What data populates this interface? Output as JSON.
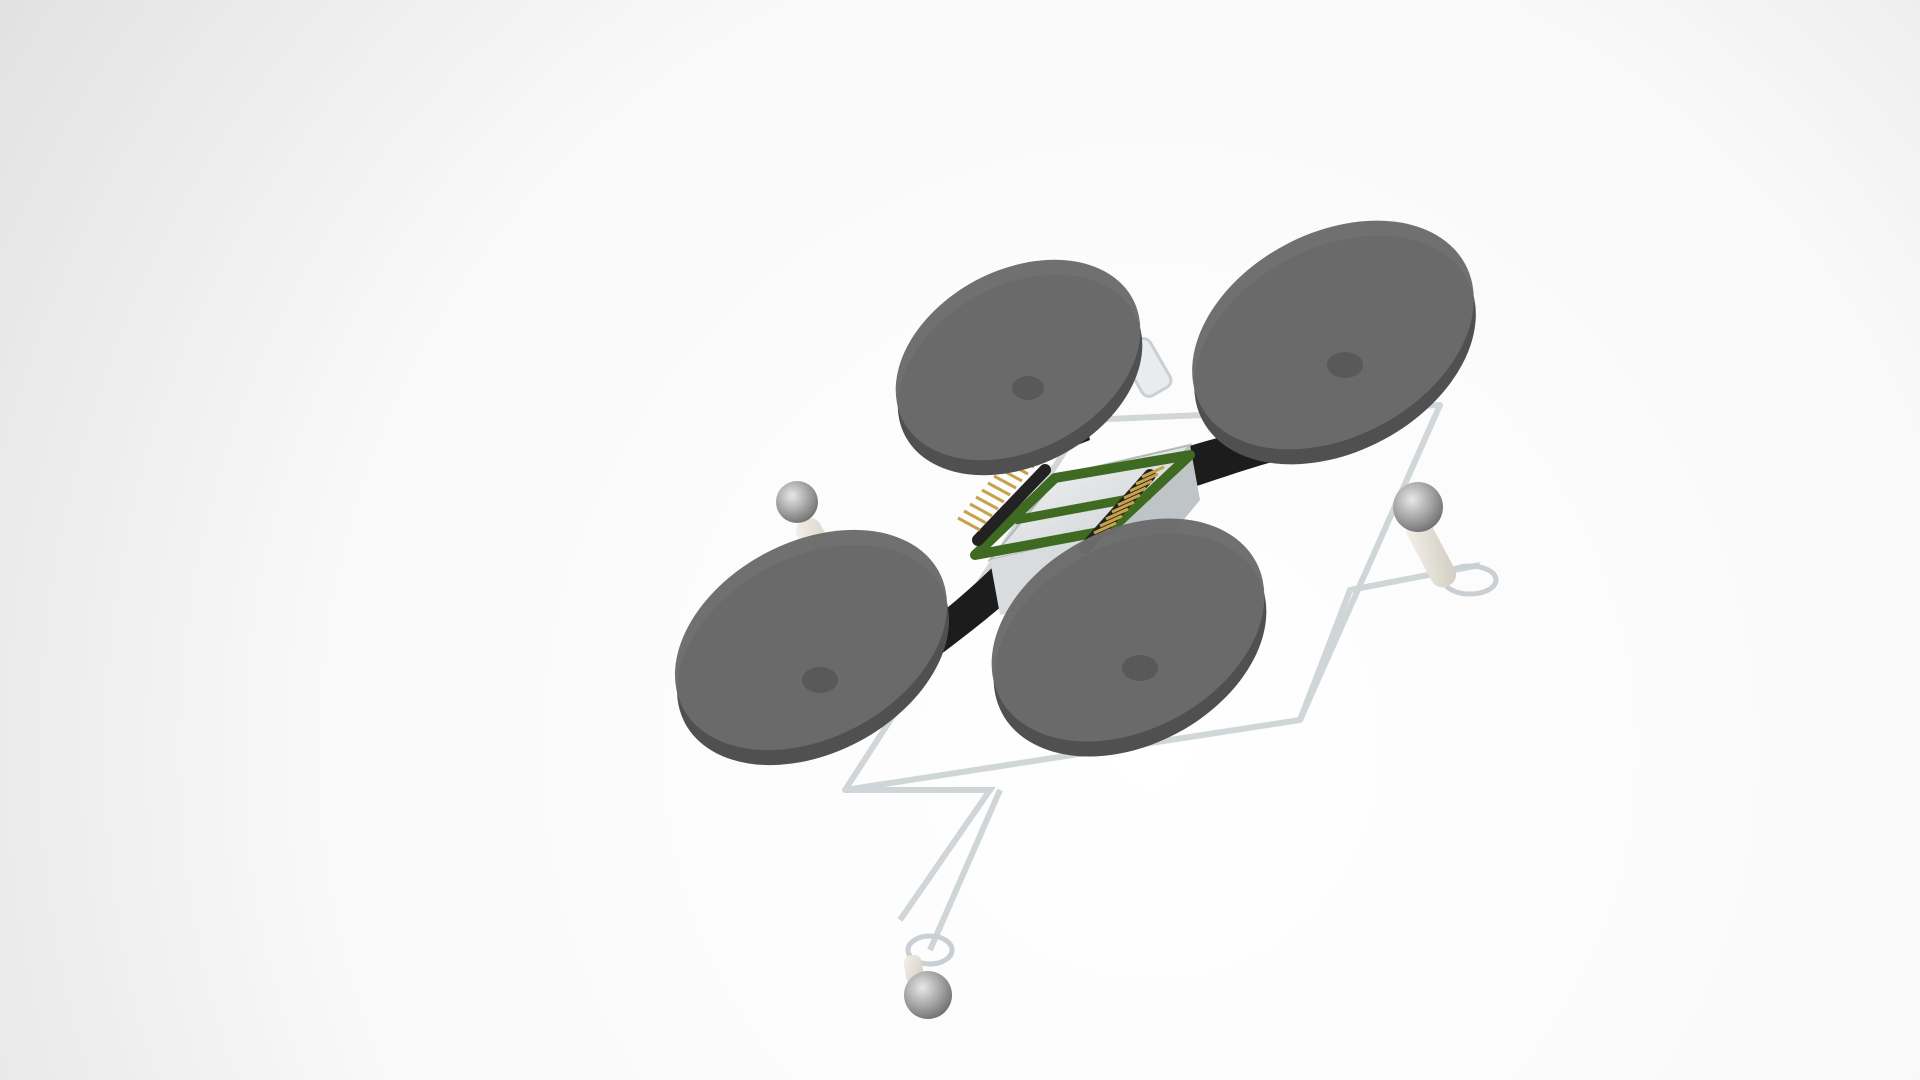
{
  "scene": {
    "subject": "quadcopter-render",
    "colors": {
      "background_light": "#ffffff",
      "background_shadow": "#e4e4e4",
      "rotor_disc": "#6b6b6b",
      "rotor_rim": "#505050",
      "frame_clear": "#eef1f2",
      "frame_edge": "#c9cfd2",
      "pcb_green": "#3f6a22",
      "pin_gold": "#c8a24a",
      "header_black": "#222222",
      "arm_black": "#1c1c1c",
      "marker_ball": "#9a9a9a"
    }
  }
}
